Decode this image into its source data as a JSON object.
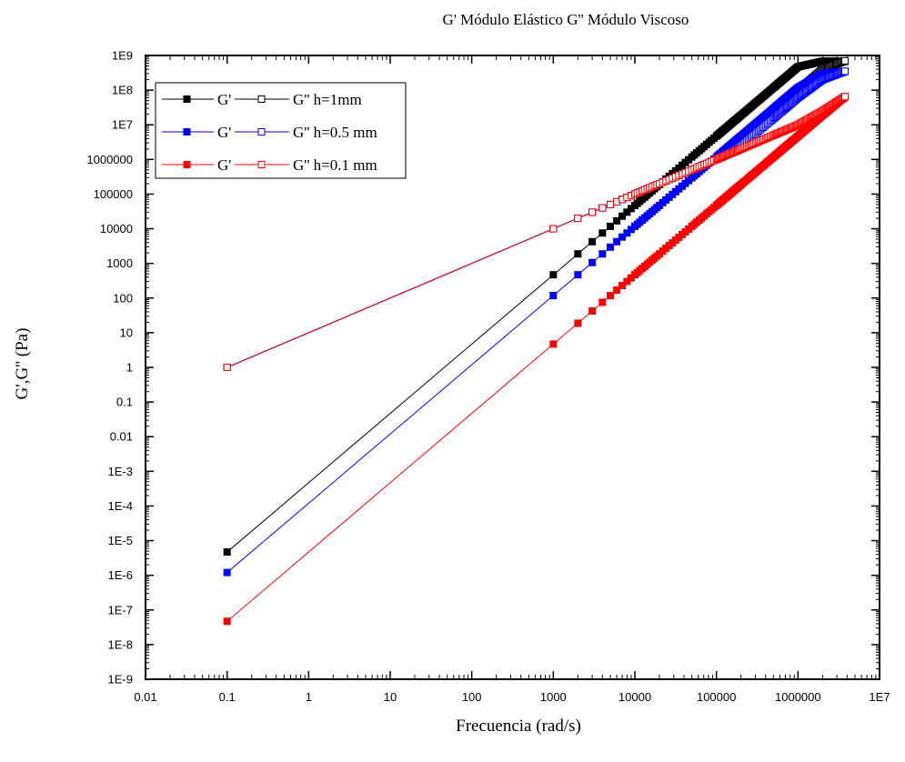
{
  "chart_data": {
    "type": "scatter",
    "title": "G'  Módulo Elástico  G'' Módulo Viscoso",
    "xlabel": "Frecuencia (rad/s)",
    "ylabel": "G',G'' (Pa)",
    "x_scale": "log",
    "y_scale": "log",
    "xlim": [
      0.01,
      10000000
    ],
    "ylim": [
      1e-09,
      1000000000
    ],
    "x_ticks": [
      0.01,
      0.1,
      1,
      10,
      100,
      1000,
      10000,
      100000,
      1000000,
      10000000
    ],
    "x_tick_labels": [
      "0.01",
      "0.1",
      "1",
      "10",
      "100",
      "1000",
      "10000",
      "100000",
      "1000000",
      "1E7"
    ],
    "y_ticks": [
      1e-09,
      1e-08,
      1e-07,
      1e-06,
      1e-05,
      0.0001,
      0.001,
      0.01,
      0.1,
      1,
      10,
      100,
      1000,
      10000,
      100000,
      1000000,
      10000000,
      100000000,
      1000000000
    ],
    "y_tick_labels": [
      "1E-9",
      "1E-8",
      "1E-7",
      "1E-6",
      "1E-5",
      "1E-4",
      "1E-3",
      "0.01",
      "0.1",
      "1",
      "10",
      "100",
      "1000",
      "10000",
      "100000",
      "1000000",
      "1E7",
      "1E8",
      "1E9"
    ],
    "grid": false,
    "legend_position": "top-left",
    "x": [
      0.1,
      1000,
      2000,
      3000,
      4000,
      5000,
      6000,
      7000,
      8000,
      9000,
      10000,
      20000,
      50000,
      100000,
      200000,
      500000,
      1000000,
      2000000,
      3770000
    ],
    "legend": [
      {
        "g1": "G'",
        "g2": "G''",
        "label": "h=1mm"
      },
      {
        "g1": "G'",
        "g2": "G''",
        "label": "h=0.5 mm"
      },
      {
        "g1": "G'",
        "g2": "G''",
        "label": "h=0.1 mm"
      }
    ],
    "series": [
      {
        "kind": "G'",
        "h": "h=1mm",
        "color": "#000000",
        "marker": "filled-square",
        "values": [
          4.7e-06,
          470,
          1880,
          4230,
          7520,
          11750,
          16920,
          23030,
          30080,
          38070,
          47000,
          188000,
          1175000,
          4700000,
          18800000,
          117500000,
          470000000,
          680000000,
          680000000
        ]
      },
      {
        "kind": "G''",
        "h": "h=1mm",
        "color": "#000000",
        "marker": "open-square",
        "values": [
          1,
          10000,
          20000,
          30000,
          40000,
          50000,
          60000,
          70000,
          80000,
          90000,
          100000,
          200000,
          500000,
          1000000,
          3000000,
          25000000,
          100000000,
          400000000,
          700000000
        ]
      },
      {
        "kind": "G'",
        "h": "h=0.5 mm",
        "color": "#0000ff",
        "marker": "filled-square",
        "values": [
          1.2e-06,
          118,
          470,
          1060,
          1880,
          2940,
          4230,
          5760,
          7520,
          9520,
          11750,
          47000,
          294000,
          1175000,
          4700000,
          29400000,
          117500000,
          300000000,
          350000000
        ]
      },
      {
        "kind": "G''",
        "h": "h=0.5 mm",
        "color": "#0000ff",
        "marker": "open-square",
        "values": [
          1,
          10000,
          20000,
          30000,
          40000,
          50000,
          60000,
          70000,
          80000,
          90000,
          100000,
          200000,
          500000,
          1000000,
          2500000,
          15000000,
          60000000,
          200000000,
          350000000
        ]
      },
      {
        "kind": "G'",
        "h": "h=0.1 mm",
        "color": "#ff0000",
        "marker": "filled-square",
        "values": [
          4.7e-08,
          4.7,
          18.8,
          42.3,
          75.2,
          117.5,
          169.2,
          230.3,
          300.8,
          380.7,
          470,
          1880,
          11750,
          47000,
          188000,
          1175000,
          4700000,
          18800000,
          65000000
        ]
      },
      {
        "kind": "G''",
        "h": "h=0.1 mm",
        "color": "#ff0000",
        "marker": "open-square",
        "values": [
          1,
          10000,
          20000,
          30000,
          40000,
          50000,
          60000,
          70000,
          80000,
          90000,
          100000,
          200000,
          500000,
          1000000,
          2000000,
          5000000,
          10000000,
          25000000,
          65000000
        ]
      }
    ]
  }
}
